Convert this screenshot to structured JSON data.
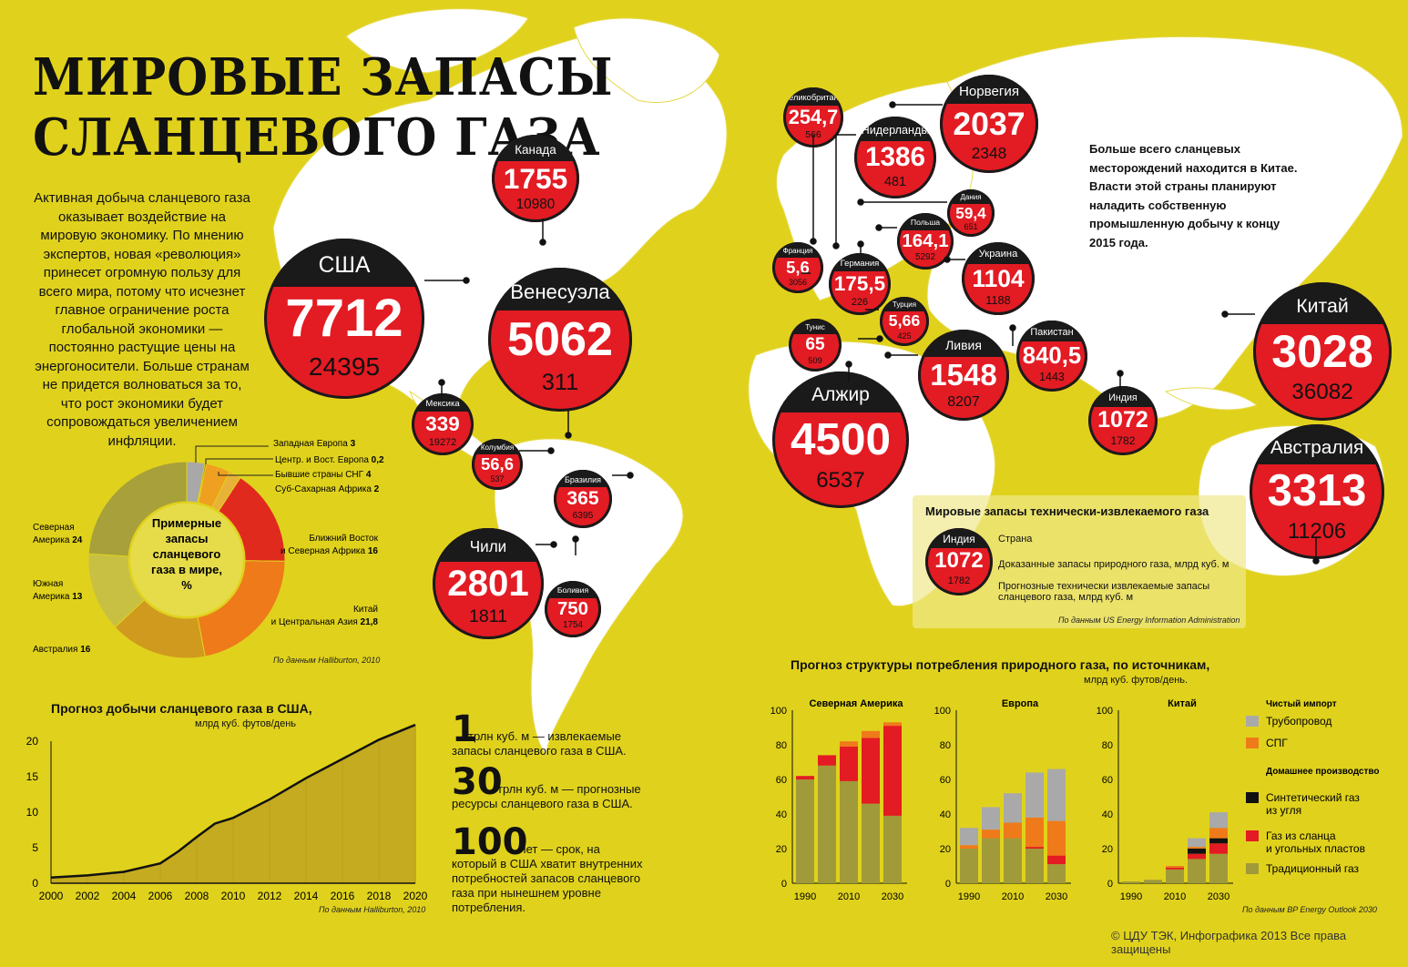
{
  "title_line1": "МИРОВЫЕ ЗАПАСЫ",
  "title_line2": "СЛАНЦЕВОГО ГАЗА",
  "intro": "Активная добыча сланцевого газа оказывает воздействие на мировую экономику. По мнению экспертов, новая «революция» принесет огромную пользу для всего мира, потому что исчезнет главное ограничение роста глобальной экономики — постоянно растущие цены на энергоносители. Больше странам не придется волноваться за то, что рост экономики будет сопровождаться увеличением инфляции.",
  "china_note": "Больше всего сланцевых месторождений находится в Китае. Власти этой страны планируют наладить собственную промышленную добычу к концу 2015 года.",
  "colors": {
    "background": "#e0d21c",
    "map": "#ffffff",
    "bubble_red": "#e31b23",
    "bubble_black": "#1a1a1a"
  },
  "chart_data": [
    {
      "type": "bubble-map",
      "title": "Мировые запасы технически-извлекаемого газа",
      "legend": {
        "country": "Индия",
        "proved": "1072",
        "forecast": "1782",
        "label_country": "Страна",
        "label_proved": "Доказанные запасы природного газа, млрд куб. м",
        "label_forecast": "Прогнозные технически извлекаемые запасы сланцевого газа, млрд куб. м"
      },
      "source": "По данным US Energy Information Administration",
      "countries": [
        {
          "name": "США",
          "proved": "7712",
          "forecast": "24395"
        },
        {
          "name": "Канада",
          "proved": "1755",
          "forecast": "10980"
        },
        {
          "name": "Венесуэла",
          "proved": "5062",
          "forecast": "311"
        },
        {
          "name": "Мексика",
          "proved": "339",
          "forecast": "19272"
        },
        {
          "name": "Колумбия",
          "proved": "56,6",
          "forecast": "537"
        },
        {
          "name": "Бразилия",
          "proved": "365",
          "forecast": "6395"
        },
        {
          "name": "Чили",
          "proved": "2801",
          "forecast": "1811"
        },
        {
          "name": "Боливия",
          "proved": "750",
          "forecast": "1754"
        },
        {
          "name": "Великобритания",
          "proved": "254,7",
          "forecast": "566"
        },
        {
          "name": "Нидерланды",
          "proved": "1386",
          "forecast": "481"
        },
        {
          "name": "Норвегия",
          "proved": "2037",
          "forecast": "2348"
        },
        {
          "name": "Дания",
          "proved": "59,4",
          "forecast": "651"
        },
        {
          "name": "Франция",
          "proved": "5,6",
          "forecast": "3056"
        },
        {
          "name": "Германия",
          "proved": "175,5",
          "forecast": "226"
        },
        {
          "name": "Польша",
          "proved": "164,1",
          "forecast": "5292"
        },
        {
          "name": "Украина",
          "proved": "1104",
          "forecast": "1188"
        },
        {
          "name": "Турция",
          "proved": "5,66",
          "forecast": "425"
        },
        {
          "name": "Тунис",
          "proved": "65",
          "forecast": "509"
        },
        {
          "name": "Ливия",
          "proved": "1548",
          "forecast": "8207"
        },
        {
          "name": "Пакистан",
          "proved": "840,5",
          "forecast": "1443"
        },
        {
          "name": "Алжир",
          "proved": "4500",
          "forecast": "6537"
        },
        {
          "name": "Индия",
          "proved": "1072",
          "forecast": "1782"
        },
        {
          "name": "Китай",
          "proved": "3028",
          "forecast": "36082"
        },
        {
          "name": "Австралия",
          "proved": "3313",
          "forecast": "11206"
        }
      ]
    },
    {
      "type": "pie",
      "title": "Примерные запасы сланцевого газа в мире, %",
      "source": "По данным Halliburton, 2010",
      "slices": [
        {
          "label": "Западная Европа",
          "value": 3,
          "text": "3",
          "color": "#a8a8a8"
        },
        {
          "label": "Центр. и Вост. Европа",
          "value": 0.2,
          "text": "0,2",
          "color": "#111111"
        },
        {
          "label": "Бывшие страны СНГ",
          "value": 4,
          "text": "4",
          "color": "#f0a020"
        },
        {
          "label": "Суб-Сахарная Африка",
          "value": 2,
          "text": "2",
          "color": "#e8b13a"
        },
        {
          "label": "Ближний Восток и Северная Африка",
          "value": 16,
          "text": "16",
          "color": "#e02a1e"
        },
        {
          "label": "Китай и Центральная Азия",
          "value": 21.8,
          "text": "21,8",
          "color": "#ef7a1a"
        },
        {
          "label": "Австралия",
          "value": 16,
          "text": "16",
          "color": "#d09a1e"
        },
        {
          "label": "Южная Америка",
          "value": 13,
          "text": "13",
          "color": "#c8c043"
        },
        {
          "label": "Северная Америка",
          "value": 24,
          "text": "24",
          "color": "#a8a03a"
        }
      ]
    },
    {
      "type": "area",
      "title": "Прогноз добычи сланцевого газа в США,",
      "subtitle": "млрд куб. футов/день",
      "source": "По данным Halliburton, 2010",
      "x": [
        2000,
        2002,
        2004,
        2006,
        2007,
        2008,
        2009,
        2010,
        2012,
        2014,
        2016,
        2018,
        2020
      ],
      "y": [
        0.8,
        1.1,
        1.6,
        2.8,
        4.5,
        6.5,
        8.4,
        9.2,
        11.8,
        14.8,
        17.5,
        20.2,
        22.3
      ],
      "xticks": [
        "2000",
        "2002",
        "2004",
        "2006",
        "2008",
        "2010",
        "2012",
        "2014",
        "2016",
        "2018",
        "2020"
      ],
      "yticks": [
        "0",
        "5",
        "10",
        "15",
        "20"
      ],
      "ylim": [
        0,
        22
      ]
    },
    {
      "type": "bar",
      "title": "Прогноз структуры потребления природного газа, по источникам,",
      "subtitle": "млрд куб. футов/день.",
      "source": "По данным BP Energy Outlook 2030",
      "categories": [
        "1990",
        "2000",
        "2010",
        "2020",
        "2030"
      ],
      "xticks": [
        "1990",
        "2010",
        "2030"
      ],
      "yticks": [
        "0",
        "20",
        "40",
        "60",
        "80",
        "100"
      ],
      "ylim": [
        0,
        100
      ],
      "legend_groups": {
        "import": "Чистый импорт",
        "domestic": "Домашнее производство"
      },
      "series_names": [
        "Трубопровод",
        "СПГ",
        "Синтетический газ из угля",
        "Газ из сланца и угольных пластов",
        "Традиционный газ"
      ],
      "series_colors": [
        "#a9a9a9",
        "#ef7a1a",
        "#111111",
        "#e31b23",
        "#a09a3a"
      ],
      "regions": [
        {
          "name": "Северная Америка",
          "stacks": [
            [
              0,
              0,
              0,
              2,
              60
            ],
            [
              0,
              0,
              0,
              6,
              68
            ],
            [
              0,
              3,
              0,
              20,
              59
            ],
            [
              0,
              4,
              0,
              38,
              46
            ],
            [
              0,
              2,
              0,
              52,
              39
            ]
          ]
        },
        {
          "name": "Европа",
          "stacks": [
            [
              10,
              2,
              0,
              0,
              20
            ],
            [
              13,
              5,
              0,
              0,
              26
            ],
            [
              17,
              9,
              0,
              0,
              26
            ],
            [
              26,
              17,
              0,
              1,
              20
            ],
            [
              30,
              20,
              0,
              5,
              11
            ]
          ]
        },
        {
          "name": "Китай",
          "stacks": [
            [
              0,
              0,
              0,
              0,
              1
            ],
            [
              0,
              0,
              0,
              0,
              2
            ],
            [
              0,
              1,
              0,
              1,
              8
            ],
            [
              5,
              1,
              3,
              3,
              14
            ],
            [
              9,
              6,
              3,
              6,
              17
            ]
          ]
        }
      ]
    }
  ],
  "facts": [
    {
      "num": "1",
      "text": "трлн куб. м — извлекаемые запасы сланцевого газа в США."
    },
    {
      "num": "30",
      "text": "трлн куб. м — прогнозные ресурсы сланцевого газа в США."
    },
    {
      "num": "100",
      "text": "лет — срок, на который в США хватит внутренних потребностей запасов сланцевого газа при нынешнем уровне потребления."
    }
  ],
  "copyright": "© ЦДУ ТЭК, Инфографика 2013 Все права защищены"
}
